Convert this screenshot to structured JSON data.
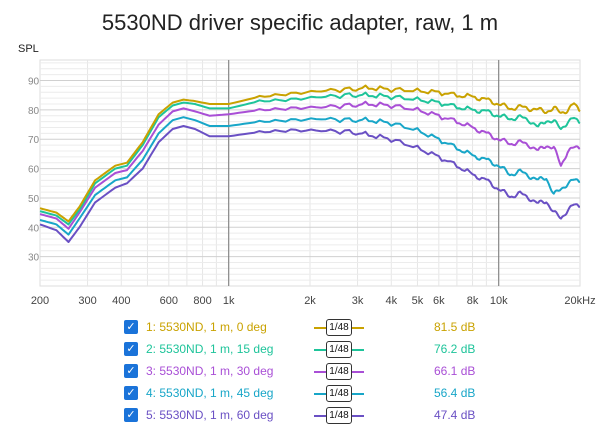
{
  "chart_data": {
    "type": "line",
    "title": "5530ND driver specific adapter, raw, 1 m",
    "ylabel": "SPL",
    "xscale": "log",
    "xlim": [
      200,
      20000
    ],
    "ylim": [
      20,
      97
    ],
    "xticks": [
      {
        "v": 200,
        "label": "200"
      },
      {
        "v": 300,
        "label": "300"
      },
      {
        "v": 400,
        "label": "400"
      },
      {
        "v": 600,
        "label": "600"
      },
      {
        "v": 800,
        "label": "800"
      },
      {
        "v": 1000,
        "label": "1k"
      },
      {
        "v": 2000,
        "label": "2k"
      },
      {
        "v": 3000,
        "label": "3k"
      },
      {
        "v": 4000,
        "label": "4k"
      },
      {
        "v": 5000,
        "label": "5k"
      },
      {
        "v": 6000,
        "label": "6k"
      },
      {
        "v": 8000,
        "label": "8k"
      },
      {
        "v": 10000,
        "label": "10k"
      },
      {
        "v": 20000,
        "label": "20kHz"
      }
    ],
    "yticks": [
      30,
      40,
      50,
      60,
      70,
      80,
      90
    ],
    "x": [
      200,
      230,
      255,
      280,
      320,
      380,
      420,
      480,
      550,
      620,
      680,
      750,
      850,
      1000,
      1300,
      1700,
      2200,
      2800,
      3300,
      4000,
      5000,
      6000,
      7000,
      8000,
      9000,
      10000,
      11000,
      12000,
      13000,
      14000,
      15000,
      16000,
      17000,
      18000,
      19000,
      20000
    ],
    "series": [
      {
        "name": "1: 5530ND, 1 m, 0 deg",
        "color": "#c9a200",
        "smoothing": "1/48",
        "level": "81.5 dB",
        "values": [
          46.5,
          45,
          42,
          47,
          56,
          61,
          62,
          69,
          78.5,
          82.5,
          83.5,
          83,
          82,
          82,
          84.5,
          85.5,
          86.5,
          87,
          87.5,
          87,
          86.5,
          86,
          85,
          84.5,
          83.5,
          82,
          80.5,
          81,
          80.5,
          80,
          79.5,
          80.5,
          79,
          80,
          82,
          79.5
        ]
      },
      {
        "name": "2: 5530ND, 1 m, 15 deg",
        "color": "#1ec49a",
        "smoothing": "1/48",
        "level": "76.2 dB",
        "values": [
          45.5,
          44,
          41,
          46,
          55,
          60,
          61,
          68,
          77.5,
          81.5,
          82.5,
          82,
          80.5,
          80.5,
          83,
          83.5,
          84.5,
          85,
          85,
          84.5,
          83.5,
          82.5,
          81,
          80,
          79.5,
          78,
          77,
          77.5,
          76.5,
          74,
          76.5,
          76,
          73.5,
          76,
          77,
          75.5
        ]
      },
      {
        "name": "3: 5530ND, 1 m, 30 deg",
        "color": "#a94fd6",
        "smoothing": "1/48",
        "level": "66.1 dB",
        "values": [
          44.5,
          43,
          39.5,
          45,
          53.5,
          58.5,
          59.5,
          66,
          75,
          79.5,
          80.5,
          79.5,
          78,
          78.5,
          80,
          80.5,
          81,
          81.5,
          82,
          81.5,
          80,
          78,
          76,
          74,
          72,
          70,
          68.5,
          69,
          68,
          66,
          68,
          67,
          61,
          66,
          67,
          67
        ]
      },
      {
        "name": "4: 5530ND, 1 m, 45 deg",
        "color": "#18a6c8",
        "smoothing": "1/48",
        "level": "56.4 dB",
        "values": [
          42.5,
          41,
          37.5,
          43,
          51,
          56,
          57,
          63,
          72,
          76.5,
          77.5,
          76.5,
          74.5,
          74.5,
          76,
          76.5,
          77,
          76.5,
          76.5,
          75.5,
          73,
          70,
          67,
          64.5,
          63,
          61,
          58,
          59,
          57.5,
          56,
          57,
          51,
          53,
          55,
          56,
          55.5
        ]
      },
      {
        "name": "5: 5530ND, 1 m, 60 deg",
        "color": "#6a50c4",
        "smoothing": "1/48",
        "level": "47.4 dB",
        "values": [
          41,
          39,
          35,
          40,
          48.5,
          53.5,
          55,
          60,
          69,
          73.5,
          74.5,
          73.5,
          71,
          71,
          72.5,
          73,
          73,
          72.5,
          71.5,
          70,
          67,
          64,
          61,
          58,
          56,
          53,
          50.5,
          51.5,
          50,
          48,
          49,
          45,
          43,
          46,
          47.5,
          47
        ]
      }
    ]
  }
}
